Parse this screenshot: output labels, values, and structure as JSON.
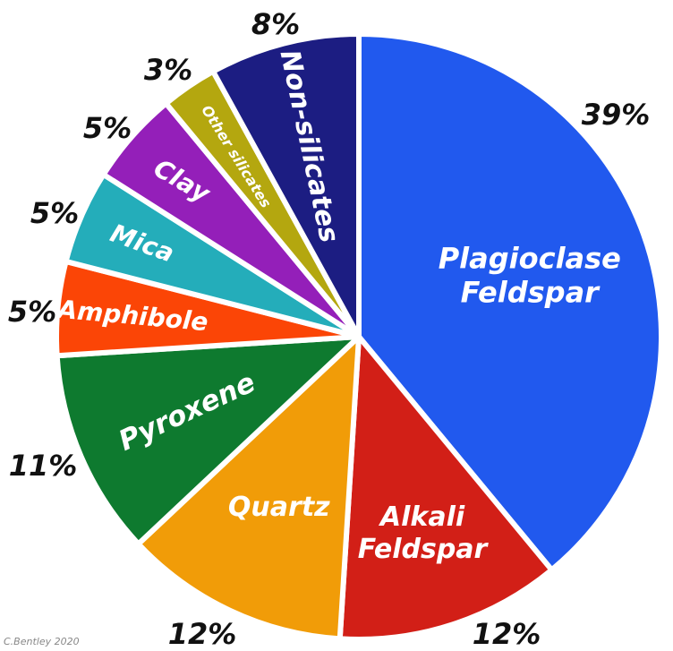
{
  "chart_data": {
    "type": "pie",
    "slices": [
      {
        "label": "Plagioclase Feldspar",
        "lines": [
          "Plagioclase",
          "Feldspar"
        ],
        "value": 39,
        "value_label": "39%",
        "color": "#2159ee"
      },
      {
        "label": "Alkali Feldspar",
        "lines": [
          "Alkali",
          "Feldspar"
        ],
        "value": 12,
        "value_label": "12%",
        "color": "#d21f17"
      },
      {
        "label": "Quartz",
        "lines": [
          "Quartz"
        ],
        "value": 12,
        "value_label": "12%",
        "color": "#f19c08"
      },
      {
        "label": "Pyroxene",
        "lines": [
          "Pyroxene"
        ],
        "value": 11,
        "value_label": "11%",
        "color": "#0e7a2f"
      },
      {
        "label": "Amphibole",
        "lines": [
          "Amphibole"
        ],
        "value": 5,
        "value_label": "5%",
        "color": "#fb4506"
      },
      {
        "label": "Mica",
        "lines": [
          "Mica"
        ],
        "value": 5,
        "value_label": "5%",
        "color": "#24adba"
      },
      {
        "label": "Clay",
        "lines": [
          "Clay"
        ],
        "value": 5,
        "value_label": "5%",
        "color": "#941fb9"
      },
      {
        "label": "Other silicates",
        "lines": [
          "Other silicates"
        ],
        "value": 3,
        "value_label": "3%",
        "color": "#b4a70f"
      },
      {
        "label": "Non-silicates",
        "lines": [
          "Non-silicates"
        ],
        "value": 8,
        "value_label": "8%",
        "color": "#1c1d82"
      }
    ]
  },
  "credit": "C.Bentley 2020"
}
